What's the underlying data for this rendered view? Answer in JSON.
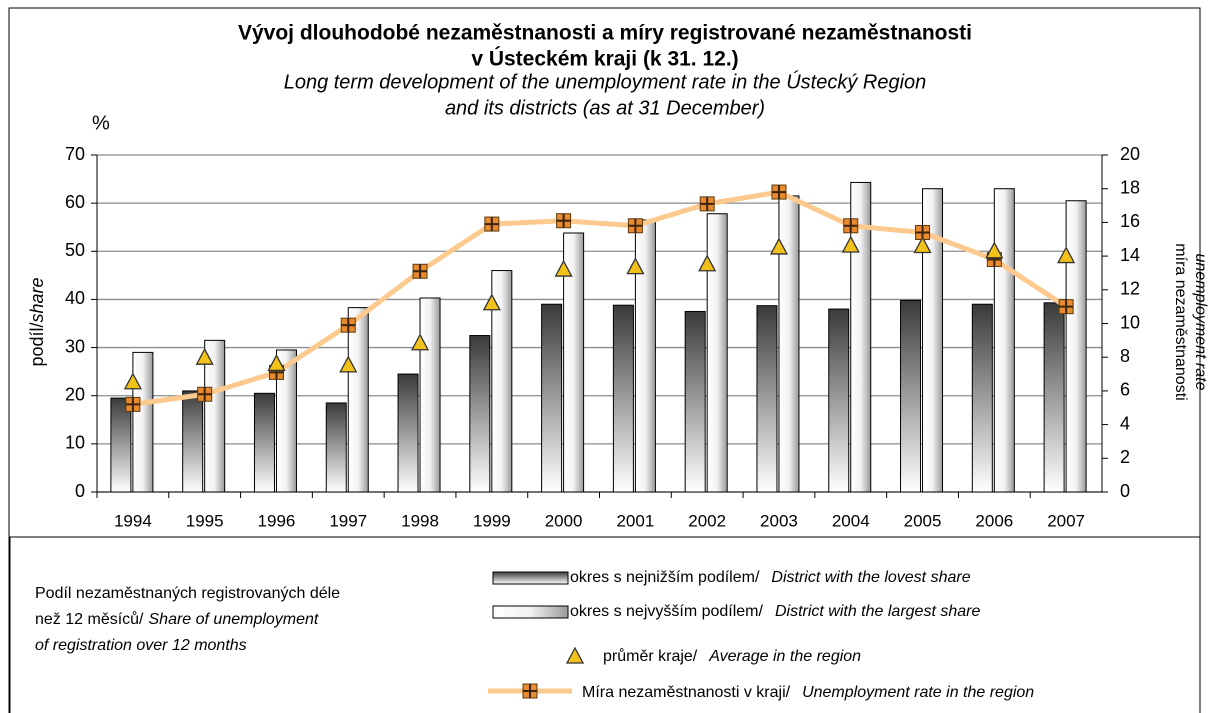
{
  "chart_data": {
    "type": "bar",
    "title": [
      "Vývoj dlouhodobé nezaměstnanosti a míry registrované nezaměstnanosti",
      "v Ústeckém kraji (k 31. 12.)"
    ],
    "subtitle": [
      "Long term development of the unemployment rate in the Ústecký Region",
      "and its districts (as at 31 December)"
    ],
    "y_unit": "%",
    "y_label": {
      "cs": "podíl/",
      "en": "share"
    },
    "y2_label": {
      "cs": "míra nezaměstnanosti",
      "en": "unemployment rate"
    },
    "note": {
      "cs": [
        "Podíl nezaměstnaných registrovaných déle",
        "než 12 měsíců/"
      ],
      "en": [
        "Share of unemployment",
        "of registration over 12 months"
      ]
    },
    "categories": [
      "1994",
      "1995",
      "1996",
      "1997",
      "1998",
      "1999",
      "2000",
      "2001",
      "2002",
      "2003",
      "2004",
      "2005",
      "2006",
      "2007"
    ],
    "ylim": [
      0,
      70
    ],
    "yticks": [
      0,
      10,
      20,
      30,
      40,
      50,
      60,
      70
    ],
    "y2lim": [
      0,
      20
    ],
    "y2ticks": [
      0,
      2,
      4,
      6,
      8,
      10,
      12,
      14,
      16,
      18,
      20
    ],
    "grid": true,
    "series": [
      {
        "name": "okres s nejnižším podílem/",
        "name_en": "District with the lovest share",
        "type": "bar",
        "color": "#555555",
        "values": [
          19.5,
          21,
          20.5,
          18.5,
          24.5,
          32.5,
          39,
          38.8,
          37.5,
          38.7,
          38,
          39.8,
          39,
          39.3
        ]
      },
      {
        "name": "okres s nejvyšším podílem/",
        "name_en": "District with the largest share",
        "type": "bar",
        "color": "#dddddd",
        "values": [
          29,
          31.5,
          29.5,
          38.3,
          40.3,
          46,
          53.8,
          56.5,
          57.8,
          61.5,
          64.3,
          63,
          63,
          60.5
        ]
      },
      {
        "name": "průměr kraje/",
        "name_en": "Average in the region",
        "type": "scatter",
        "color": "#f2c21b",
        "values": [
          22.7,
          27.8,
          26.5,
          26.2,
          30.8,
          39.1,
          46.1,
          46.6,
          47.2,
          50.7,
          51.1,
          51,
          49.9,
          48.9
        ]
      },
      {
        "name": "Míra nezaměstnanosti v kraji/",
        "name_en": "Unemployment rate in the region",
        "type": "line",
        "axis": "y2",
        "color": "#fcca8e",
        "values": [
          5.2,
          5.8,
          7.1,
          9.9,
          13.1,
          15.9,
          16.1,
          15.8,
          17.1,
          17.8,
          15.8,
          15.4,
          13.8,
          11.0
        ]
      }
    ]
  }
}
